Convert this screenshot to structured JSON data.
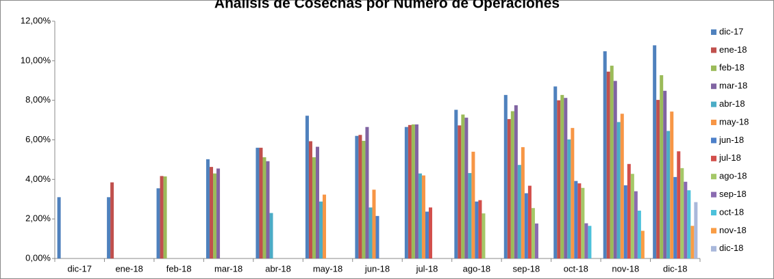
{
  "chart_data": {
    "type": "bar",
    "title": "Análisis de Cosechas por Número de Operaciones",
    "categories": [
      "dic-17",
      "ene-18",
      "feb-18",
      "mar-18",
      "abr-18",
      "may-18",
      "jun-18",
      "jul-18",
      "ago-18",
      "sep-18",
      "oct-18",
      "nov-18",
      "dic-18"
    ],
    "ylim": [
      0,
      12
    ],
    "yticks": [
      {
        "value": 0,
        "label": "0,00%"
      },
      {
        "value": 2,
        "label": "2,00%"
      },
      {
        "value": 4,
        "label": "4,00%"
      },
      {
        "value": 6,
        "label": "6,00%"
      },
      {
        "value": 8,
        "label": "8,00%"
      },
      {
        "value": 10,
        "label": "10,00%"
      },
      {
        "value": 12,
        "label": "12,00%"
      }
    ],
    "legend": "right",
    "series": [
      {
        "name": "dic-17",
        "color": "#4F81BD",
        "values": [
          3.1,
          3.1,
          3.55,
          5.02,
          5.6,
          7.22,
          6.2,
          6.65,
          7.52,
          8.27,
          8.7,
          10.48,
          10.78
        ]
      },
      {
        "name": "ene-18",
        "color": "#C0504D",
        "values": [
          null,
          3.85,
          4.17,
          4.63,
          5.6,
          5.93,
          6.25,
          6.75,
          6.73,
          7.05,
          8.0,
          9.45,
          8.02
        ]
      },
      {
        "name": "feb-18",
        "color": "#9BBB59",
        "values": [
          null,
          null,
          4.15,
          4.3,
          5.12,
          5.12,
          5.95,
          6.78,
          7.28,
          7.45,
          8.27,
          9.75,
          9.27
        ]
      },
      {
        "name": "mar-18",
        "color": "#8064A2",
        "values": [
          null,
          null,
          null,
          4.55,
          4.92,
          5.65,
          6.65,
          6.78,
          7.12,
          7.75,
          8.12,
          8.98,
          8.48
        ]
      },
      {
        "name": "abr-18",
        "color": "#4BACC6",
        "values": [
          null,
          null,
          null,
          null,
          2.3,
          2.88,
          2.58,
          4.3,
          4.32,
          4.73,
          6.02,
          6.9,
          6.45
        ]
      },
      {
        "name": "may-18",
        "color": "#F79646",
        "values": [
          null,
          null,
          null,
          null,
          null,
          3.23,
          3.48,
          4.2,
          5.4,
          5.63,
          6.6,
          7.32,
          7.43
        ]
      },
      {
        "name": "jun-18",
        "color": "#4D80C9",
        "values": [
          null,
          null,
          null,
          null,
          null,
          null,
          2.15,
          2.37,
          2.88,
          3.3,
          3.92,
          3.7,
          4.12
        ]
      },
      {
        "name": "jul-18",
        "color": "#D24F4B",
        "values": [
          null,
          null,
          null,
          null,
          null,
          null,
          null,
          2.58,
          2.95,
          3.68,
          3.8,
          4.78,
          5.42
        ]
      },
      {
        "name": "ago-18",
        "color": "#A5C868",
        "values": [
          null,
          null,
          null,
          null,
          null,
          null,
          null,
          null,
          2.28,
          2.55,
          3.57,
          4.28,
          4.57
        ]
      },
      {
        "name": "sep-18",
        "color": "#8A6BB0",
        "values": [
          null,
          null,
          null,
          null,
          null,
          null,
          null,
          null,
          null,
          1.77,
          1.78,
          3.4,
          3.88
        ]
      },
      {
        "name": "oct-18",
        "color": "#4CC1DB",
        "values": [
          null,
          null,
          null,
          null,
          null,
          null,
          null,
          null,
          null,
          null,
          1.65,
          2.42,
          3.45
        ]
      },
      {
        "name": "nov-18",
        "color": "#F99D45",
        "values": [
          null,
          null,
          null,
          null,
          null,
          null,
          null,
          null,
          null,
          null,
          null,
          1.4,
          1.65
        ]
      },
      {
        "name": "dic-18",
        "color": "#A9B8DB",
        "values": [
          null,
          null,
          null,
          null,
          null,
          null,
          null,
          null,
          null,
          null,
          null,
          null,
          2.85
        ]
      }
    ]
  }
}
